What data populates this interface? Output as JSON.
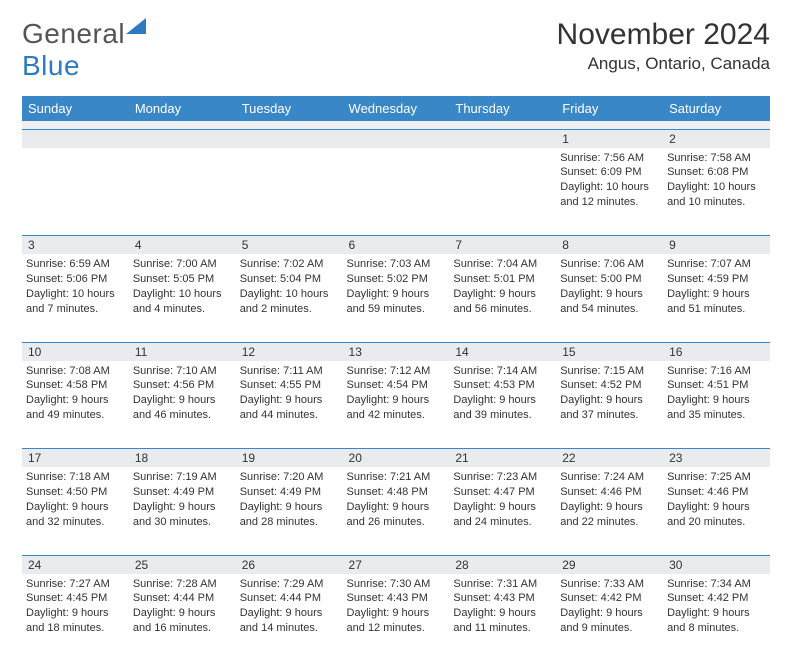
{
  "logo": {
    "word1": "General",
    "word2": "Blue"
  },
  "header": {
    "month_title": "November 2024",
    "location": "Angus, Ontario, Canada"
  },
  "colors": {
    "header_bg": "#3a87c8",
    "header_text": "#ffffff",
    "row_sep": "#3a87c8",
    "daynum_bg": "#e9ebee",
    "text": "#333333",
    "logo_gray": "#555555",
    "logo_blue": "#2f7bbf"
  },
  "day_headers": [
    "Sunday",
    "Monday",
    "Tuesday",
    "Wednesday",
    "Thursday",
    "Friday",
    "Saturday"
  ],
  "weeks": [
    [
      null,
      null,
      null,
      null,
      null,
      {
        "n": "1",
        "sr": "7:56 AM",
        "ss": "6:09 PM",
        "dl": "10 hours and 12 minutes."
      },
      {
        "n": "2",
        "sr": "7:58 AM",
        "ss": "6:08 PM",
        "dl": "10 hours and 10 minutes."
      }
    ],
    [
      {
        "n": "3",
        "sr": "6:59 AM",
        "ss": "5:06 PM",
        "dl": "10 hours and 7 minutes."
      },
      {
        "n": "4",
        "sr": "7:00 AM",
        "ss": "5:05 PM",
        "dl": "10 hours and 4 minutes."
      },
      {
        "n": "5",
        "sr": "7:02 AM",
        "ss": "5:04 PM",
        "dl": "10 hours and 2 minutes."
      },
      {
        "n": "6",
        "sr": "7:03 AM",
        "ss": "5:02 PM",
        "dl": "9 hours and 59 minutes."
      },
      {
        "n": "7",
        "sr": "7:04 AM",
        "ss": "5:01 PM",
        "dl": "9 hours and 56 minutes."
      },
      {
        "n": "8",
        "sr": "7:06 AM",
        "ss": "5:00 PM",
        "dl": "9 hours and 54 minutes."
      },
      {
        "n": "9",
        "sr": "7:07 AM",
        "ss": "4:59 PM",
        "dl": "9 hours and 51 minutes."
      }
    ],
    [
      {
        "n": "10",
        "sr": "7:08 AM",
        "ss": "4:58 PM",
        "dl": "9 hours and 49 minutes."
      },
      {
        "n": "11",
        "sr": "7:10 AM",
        "ss": "4:56 PM",
        "dl": "9 hours and 46 minutes."
      },
      {
        "n": "12",
        "sr": "7:11 AM",
        "ss": "4:55 PM",
        "dl": "9 hours and 44 minutes."
      },
      {
        "n": "13",
        "sr": "7:12 AM",
        "ss": "4:54 PM",
        "dl": "9 hours and 42 minutes."
      },
      {
        "n": "14",
        "sr": "7:14 AM",
        "ss": "4:53 PM",
        "dl": "9 hours and 39 minutes."
      },
      {
        "n": "15",
        "sr": "7:15 AM",
        "ss": "4:52 PM",
        "dl": "9 hours and 37 minutes."
      },
      {
        "n": "16",
        "sr": "7:16 AM",
        "ss": "4:51 PM",
        "dl": "9 hours and 35 minutes."
      }
    ],
    [
      {
        "n": "17",
        "sr": "7:18 AM",
        "ss": "4:50 PM",
        "dl": "9 hours and 32 minutes."
      },
      {
        "n": "18",
        "sr": "7:19 AM",
        "ss": "4:49 PM",
        "dl": "9 hours and 30 minutes."
      },
      {
        "n": "19",
        "sr": "7:20 AM",
        "ss": "4:49 PM",
        "dl": "9 hours and 28 minutes."
      },
      {
        "n": "20",
        "sr": "7:21 AM",
        "ss": "4:48 PM",
        "dl": "9 hours and 26 minutes."
      },
      {
        "n": "21",
        "sr": "7:23 AM",
        "ss": "4:47 PM",
        "dl": "9 hours and 24 minutes."
      },
      {
        "n": "22",
        "sr": "7:24 AM",
        "ss": "4:46 PM",
        "dl": "9 hours and 22 minutes."
      },
      {
        "n": "23",
        "sr": "7:25 AM",
        "ss": "4:46 PM",
        "dl": "9 hours and 20 minutes."
      }
    ],
    [
      {
        "n": "24",
        "sr": "7:27 AM",
        "ss": "4:45 PM",
        "dl": "9 hours and 18 minutes."
      },
      {
        "n": "25",
        "sr": "7:28 AM",
        "ss": "4:44 PM",
        "dl": "9 hours and 16 minutes."
      },
      {
        "n": "26",
        "sr": "7:29 AM",
        "ss": "4:44 PM",
        "dl": "9 hours and 14 minutes."
      },
      {
        "n": "27",
        "sr": "7:30 AM",
        "ss": "4:43 PM",
        "dl": "9 hours and 12 minutes."
      },
      {
        "n": "28",
        "sr": "7:31 AM",
        "ss": "4:43 PM",
        "dl": "9 hours and 11 minutes."
      },
      {
        "n": "29",
        "sr": "7:33 AM",
        "ss": "4:42 PM",
        "dl": "9 hours and 9 minutes."
      },
      {
        "n": "30",
        "sr": "7:34 AM",
        "ss": "4:42 PM",
        "dl": "9 hours and 8 minutes."
      }
    ]
  ],
  "labels": {
    "sunrise": "Sunrise: ",
    "sunset": "Sunset: ",
    "daylight": "Daylight: "
  }
}
